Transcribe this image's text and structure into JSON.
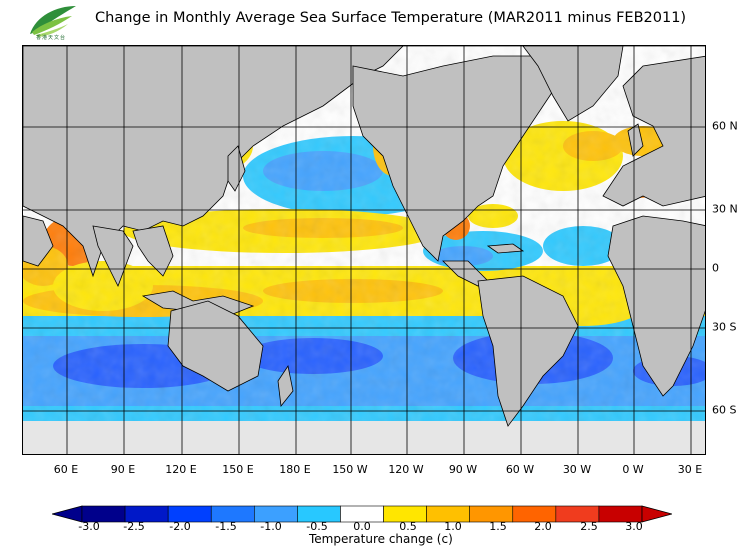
{
  "title": "Change in Monthly Average Sea Surface Temperature (MAR2011 minus FEB2011)",
  "logo": {
    "icon": "leaf-logo-icon",
    "text": "香港天文台"
  },
  "map": {
    "longitude_labels": [
      "60 E",
      "90 E",
      "120 E",
      "150 E",
      "180 E",
      "150 W",
      "120 W",
      "90 W",
      "60 W",
      "30 W",
      "0 W",
      "30 E"
    ],
    "latitude_labels": [
      "60 N",
      "30 N",
      "0",
      "30 S",
      "60 S"
    ],
    "land_color": "#c0c0c0",
    "ice_color": "#e6e6e6",
    "grid_color": "#000000"
  },
  "colorbar": {
    "ticks": [
      "-3.0",
      "-2.5",
      "-2.0",
      "-1.5",
      "-1.0",
      "-0.5",
      "0.0",
      "0.5",
      "1.0",
      "1.5",
      "2.0",
      "2.5",
      "3.0"
    ],
    "colors": [
      "#00008b",
      "#0018c8",
      "#0040ff",
      "#1e78ff",
      "#3ca0ff",
      "#28c8ff",
      "#ffffff",
      "#ffe600",
      "#ffc000",
      "#ff9600",
      "#ff6400",
      "#f03c1e",
      "#c80000"
    ],
    "caption": "Temperature change  (c)"
  },
  "colors": {
    "cool_strong": "#1e5aff",
    "cool_mid": "#3ca0ff",
    "cool_light": "#28c8ff",
    "warm_light": "#ffe600",
    "warm_mid": "#ffc000",
    "warm_strong": "#ff7800"
  }
}
